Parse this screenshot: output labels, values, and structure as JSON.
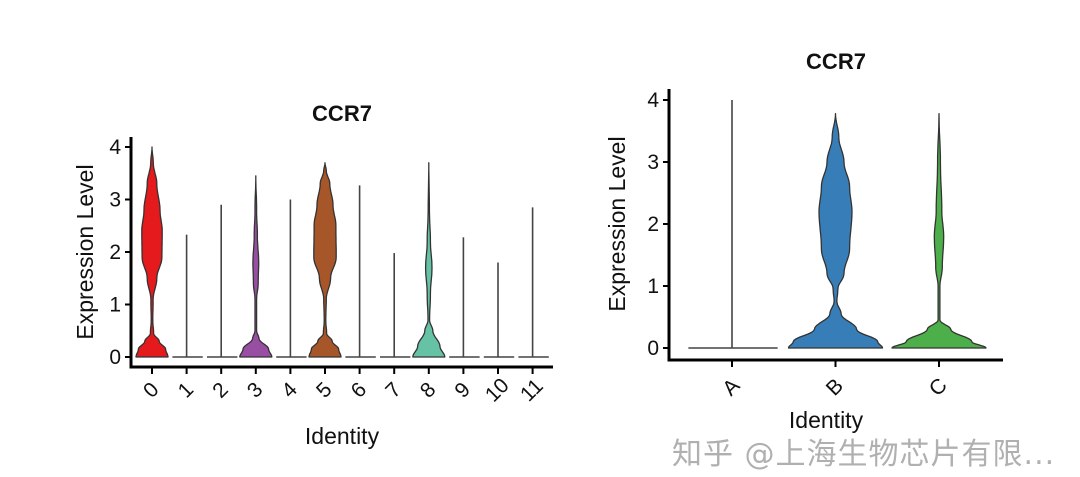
{
  "chart_data": [
    {
      "type": "violin",
      "title": "CCR7",
      "xlabel": "Identity",
      "ylabel": "Expression Level",
      "ylim": [
        0,
        4
      ],
      "yticks": [
        "0",
        "1",
        "2",
        "3",
        "4"
      ],
      "grid": false,
      "legend": "none",
      "categories": [
        "0",
        "1",
        "2",
        "3",
        "4",
        "5",
        "6",
        "7",
        "8",
        "9",
        "10",
        "11"
      ],
      "violins": [
        {
          "category": "0",
          "color": "#e41a1c",
          "max": 4.0,
          "density": [
            [
              0,
              1
            ],
            [
              0.15,
              0.85
            ],
            [
              0.3,
              0.45
            ],
            [
              0.45,
              0.1
            ],
            [
              0.7,
              0.05
            ],
            [
              1.1,
              0.07
            ],
            [
              1.5,
              0.3
            ],
            [
              1.9,
              0.62
            ],
            [
              2.4,
              0.64
            ],
            [
              2.8,
              0.5
            ],
            [
              3.3,
              0.3
            ],
            [
              3.7,
              0.08
            ],
            [
              4.0,
              0
            ]
          ]
        },
        {
          "category": "1",
          "color": "#ffffff",
          "max": 2.33,
          "density": null
        },
        {
          "category": "2",
          "color": "#ffffff",
          "max": 2.9,
          "density": null
        },
        {
          "category": "3",
          "color": "#984ea3",
          "max": 3.45,
          "density": [
            [
              0,
              1
            ],
            [
              0.15,
              0.8
            ],
            [
              0.35,
              0.2
            ],
            [
              0.5,
              0.05
            ],
            [
              1.1,
              0.05
            ],
            [
              1.4,
              0.15
            ],
            [
              1.8,
              0.18
            ],
            [
              2.3,
              0.1
            ],
            [
              2.8,
              0.05
            ],
            [
              3.45,
              0
            ]
          ]
        },
        {
          "category": "4",
          "color": "#ffffff",
          "max": 3.0,
          "density": null
        },
        {
          "category": "5",
          "color": "#a65628",
          "max": 3.7,
          "density": [
            [
              0,
              1
            ],
            [
              0.15,
              0.85
            ],
            [
              0.3,
              0.45
            ],
            [
              0.45,
              0.1
            ],
            [
              0.7,
              0.05
            ],
            [
              1.1,
              0.08
            ],
            [
              1.5,
              0.35
            ],
            [
              1.9,
              0.7
            ],
            [
              2.5,
              0.68
            ],
            [
              2.9,
              0.5
            ],
            [
              3.3,
              0.3
            ],
            [
              3.55,
              0.08
            ],
            [
              3.7,
              0
            ]
          ]
        },
        {
          "category": "6",
          "color": "#ffffff",
          "max": 3.27,
          "density": null
        },
        {
          "category": "7",
          "color": "#ffffff",
          "max": 1.98,
          "density": null
        },
        {
          "category": "8",
          "color": "#66c2a5",
          "max": 3.7,
          "density": [
            [
              0,
              1
            ],
            [
              0.2,
              0.7
            ],
            [
              0.5,
              0.25
            ],
            [
              0.7,
              0.05
            ],
            [
              1.2,
              0.1
            ],
            [
              1.7,
              0.2
            ],
            [
              2.2,
              0.1
            ],
            [
              2.8,
              0.04
            ],
            [
              3.7,
              0
            ]
          ]
        },
        {
          "category": "9",
          "color": "#ffffff",
          "max": 2.28,
          "density": null
        },
        {
          "category": "10",
          "color": "#ffffff",
          "max": 1.8,
          "density": null
        },
        {
          "category": "11",
          "color": "#ffffff",
          "max": 2.85,
          "density": null
        }
      ]
    },
    {
      "type": "violin",
      "title": "CCR7",
      "xlabel": "Identity",
      "ylabel": "Expression Level",
      "ylim": [
        0,
        4
      ],
      "yticks": [
        "0",
        "1",
        "2",
        "3",
        "4"
      ],
      "grid": false,
      "legend": "none",
      "categories": [
        "A",
        "B",
        "C"
      ],
      "violins": [
        {
          "category": "A",
          "color": "#ffffff",
          "max": 4.0,
          "density": null
        },
        {
          "category": "B",
          "color": "#377eb8",
          "max": 3.78,
          "density": [
            [
              0,
              1
            ],
            [
              0.1,
              0.9
            ],
            [
              0.3,
              0.45
            ],
            [
              0.55,
              0.12
            ],
            [
              0.75,
              0.03
            ],
            [
              0.95,
              0.05
            ],
            [
              1.2,
              0.18
            ],
            [
              1.6,
              0.3
            ],
            [
              2.2,
              0.35
            ],
            [
              2.6,
              0.3
            ],
            [
              3.0,
              0.18
            ],
            [
              3.4,
              0.07
            ],
            [
              3.78,
              0
            ]
          ]
        },
        {
          "category": "C",
          "color": "#4daf4a",
          "max": 3.78,
          "density": [
            [
              0,
              1
            ],
            [
              0.1,
              0.7
            ],
            [
              0.3,
              0.25
            ],
            [
              0.45,
              0.02
            ],
            [
              1.0,
              0.02
            ],
            [
              1.3,
              0.07
            ],
            [
              1.8,
              0.1
            ],
            [
              2.2,
              0.06
            ],
            [
              3.0,
              0.03
            ],
            [
              3.78,
              0
            ]
          ]
        }
      ]
    }
  ],
  "watermark": "知乎 @上海生物芯片有限..."
}
